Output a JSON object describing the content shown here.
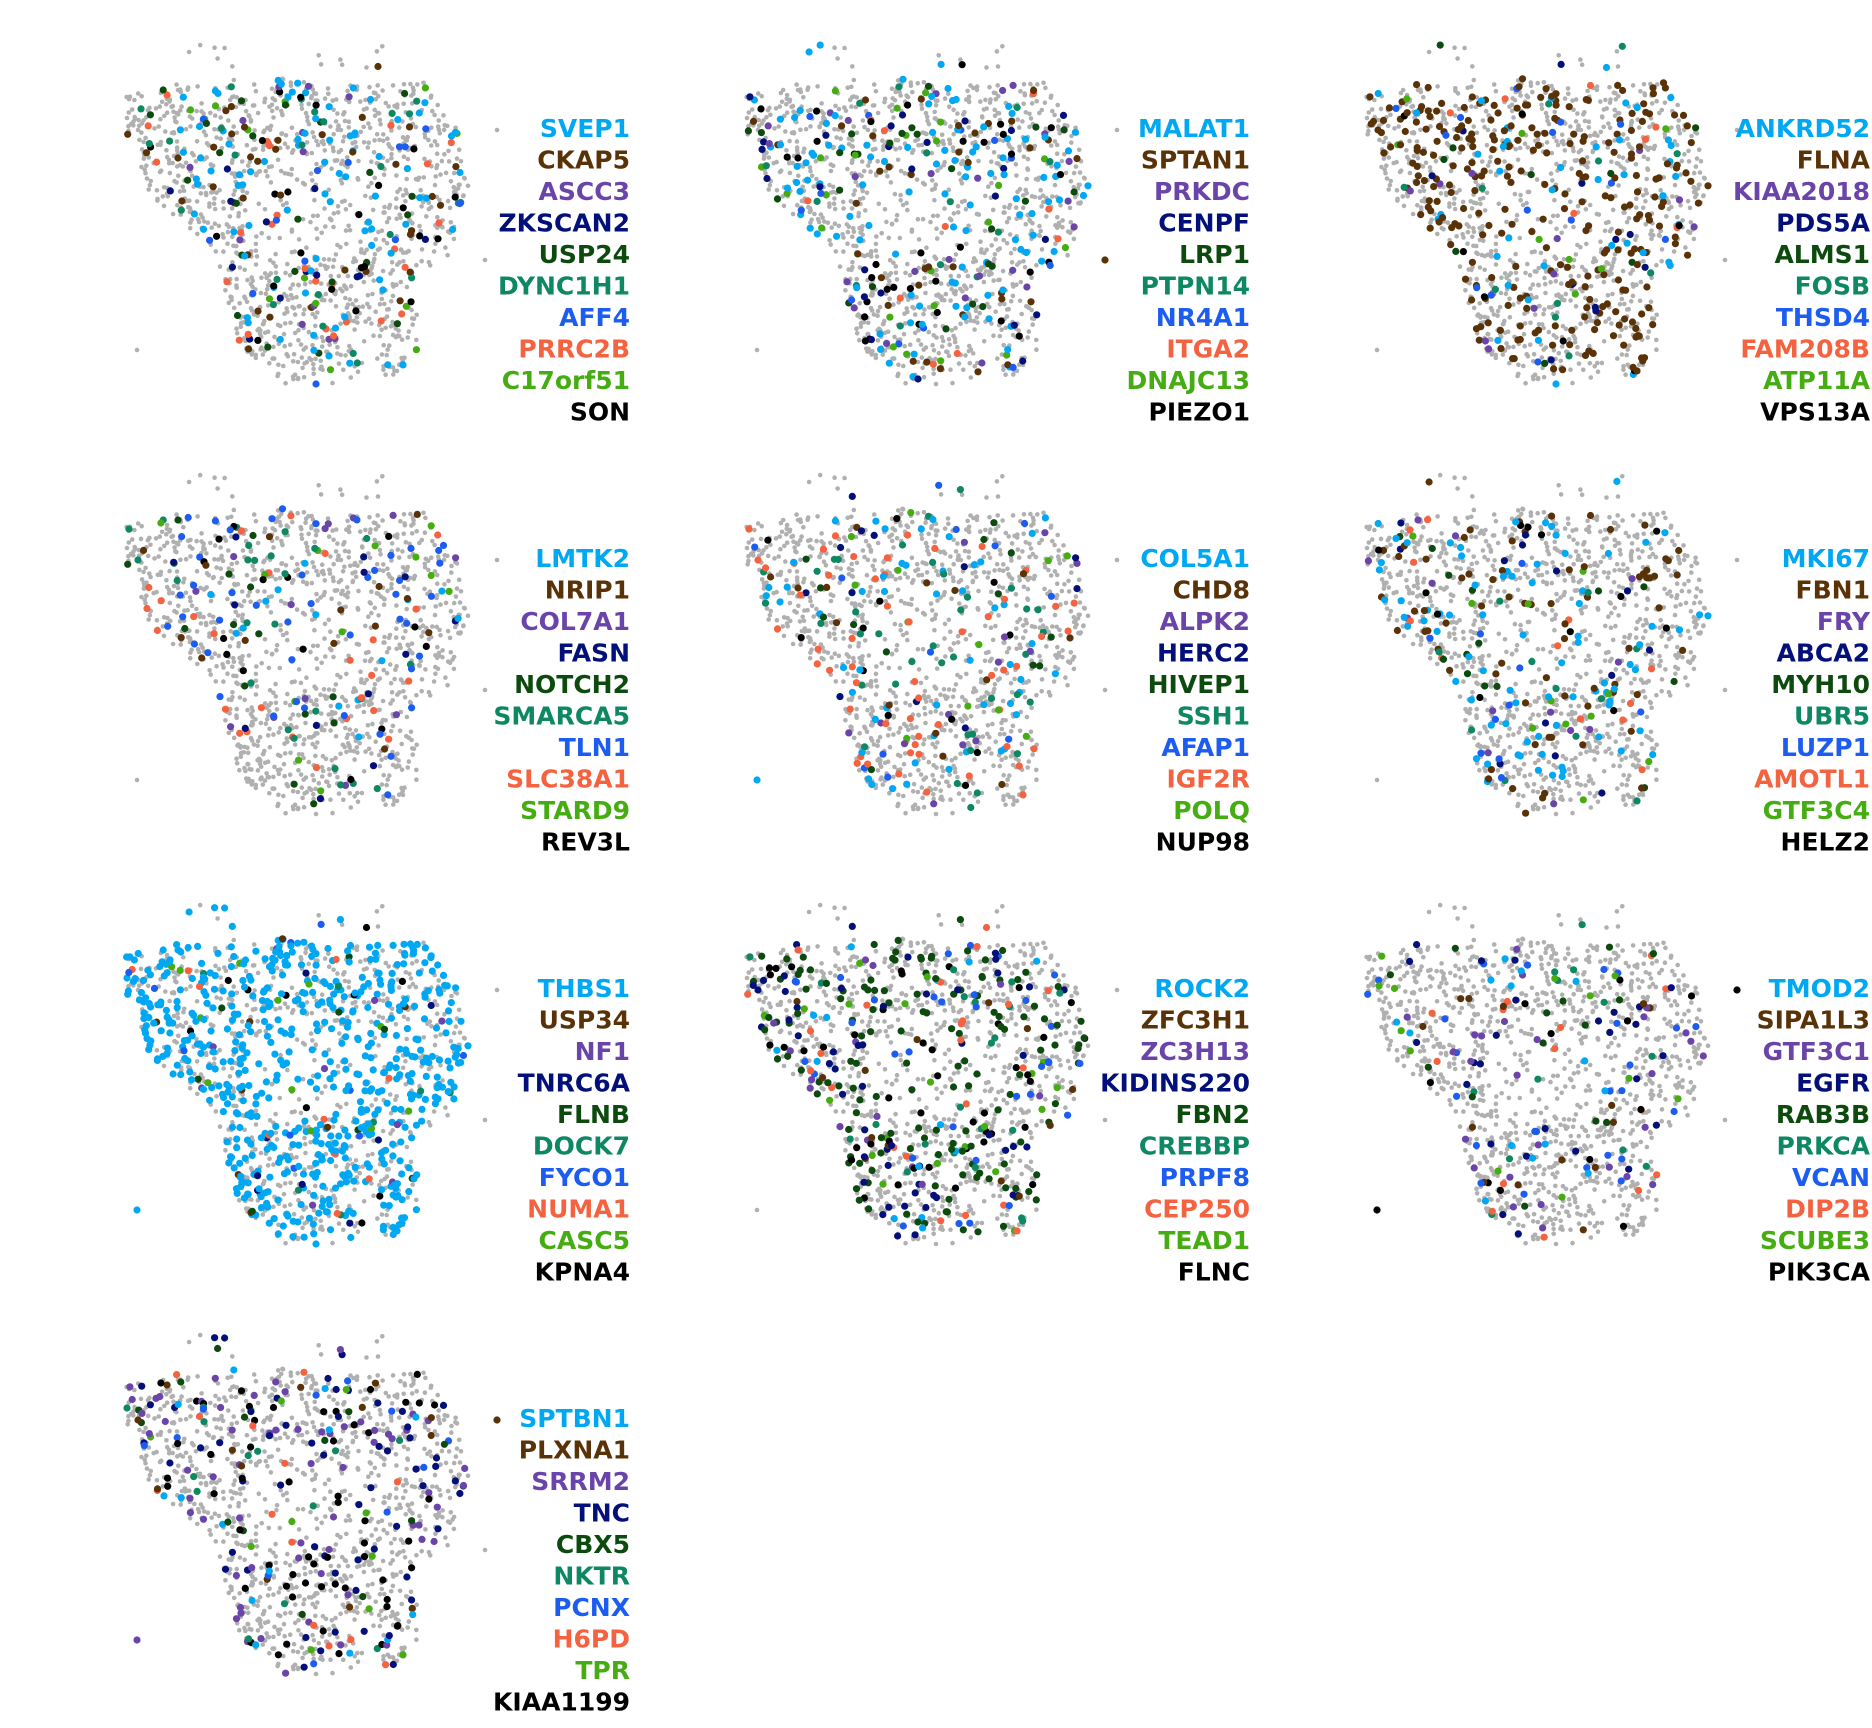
{
  "chart_data": {
    "type": "scatter",
    "background_color": "#b0b0b0",
    "palette": [
      "#00a8f3",
      "#5a3207",
      "#6a44a8",
      "#04107a",
      "#0d4a0e",
      "#0d8862",
      "#1c5cf1",
      "#f4623f",
      "#45ad12",
      "#000000"
    ],
    "panels": [
      {
        "genes": [
          "SVEP1",
          "CKAP5",
          "ASCC3",
          "ZKSCAN2",
          "USP24",
          "DYNC1H1",
          "AFF4",
          "PRRC2B",
          "C17orf51",
          "SON"
        ],
        "highlight_fraction": [
          0.06,
          0.03,
          0.01,
          0.01,
          0.02,
          0.02,
          0.01,
          0.02,
          0.01,
          0.02
        ]
      },
      {
        "genes": [
          "MALAT1",
          "SPTAN1",
          "PRKDC",
          "CENPF",
          "LRP1",
          "PTPN14",
          "NR4A1",
          "ITGA2",
          "DNAJC13",
          "PIEZO1"
        ],
        "highlight_fraction": [
          0.08,
          0.03,
          0.02,
          0.02,
          0.02,
          0.01,
          0.01,
          0.01,
          0.02,
          0.03
        ]
      },
      {
        "genes": [
          "ANKRD52",
          "FLNA",
          "KIAA2018",
          "PDS5A",
          "ALMS1",
          "FOSB",
          "THSD4",
          "FAM208B",
          "ATP11A",
          "VPS13A"
        ],
        "highlight_fraction": [
          0.03,
          0.22,
          0.01,
          0.01,
          0.01,
          0.01,
          0.01,
          0.01,
          0.01,
          0.01
        ]
      },
      {
        "genes": [
          "LMTK2",
          "NRIP1",
          "COL7A1",
          "FASN",
          "NOTCH2",
          "SMARCA5",
          "TLN1",
          "SLC38A1",
          "STARD9",
          "REV3L"
        ],
        "highlight_fraction": [
          0.01,
          0.01,
          0.01,
          0.01,
          0.01,
          0.02,
          0.04,
          0.02,
          0.01,
          0.01
        ]
      },
      {
        "genes": [
          "COL5A1",
          "CHD8",
          "ALPK2",
          "HERC2",
          "HIVEP1",
          "SSH1",
          "AFAP1",
          "IGF2R",
          "POLQ",
          "NUP98"
        ],
        "highlight_fraction": [
          0.04,
          0.01,
          0.01,
          0.01,
          0.01,
          0.03,
          0.01,
          0.05,
          0.01,
          0.01
        ]
      },
      {
        "genes": [
          "MKI67",
          "FBN1",
          "FRY",
          "ABCA2",
          "MYH10",
          "UBR5",
          "LUZP1",
          "AMOTL1",
          "GTF3C4",
          "HELZ2"
        ],
        "highlight_fraction": [
          0.06,
          0.06,
          0.01,
          0.01,
          0.01,
          0.01,
          0.01,
          0.01,
          0.01,
          0.01
        ]
      },
      {
        "genes": [
          "THBS1",
          "USP34",
          "NF1",
          "TNRC6A",
          "FLNB",
          "DOCK7",
          "FYCO1",
          "NUMA1",
          "CASC5",
          "KPNA4"
        ],
        "highlight_fraction": [
          0.6,
          0.01,
          0.01,
          0.01,
          0.01,
          0.01,
          0.01,
          0.02,
          0.01,
          0.02
        ]
      },
      {
        "genes": [
          "ROCK2",
          "ZFC3H1",
          "ZC3H13",
          "KIDINS220",
          "FBN2",
          "CREBBP",
          "PRPF8",
          "CEP250",
          "TEAD1",
          "FLNC"
        ],
        "highlight_fraction": [
          0.01,
          0.01,
          0.01,
          0.04,
          0.12,
          0.02,
          0.03,
          0.02,
          0.02,
          0.04
        ]
      },
      {
        "genes": [
          "TMOD2",
          "SIPA1L3",
          "GTF3C1",
          "EGFR",
          "RAB3B",
          "PRKCA",
          "VCAN",
          "DIP2B",
          "SCUBE3",
          "PIK3CA"
        ],
        "highlight_fraction": [
          0.01,
          0.01,
          0.02,
          0.02,
          0.01,
          0.01,
          0.02,
          0.01,
          0.01,
          0.01
        ]
      },
      {
        "genes": [
          "SPTBN1",
          "PLXNA1",
          "SRRM2",
          "TNC",
          "CBX5",
          "NKTR",
          "PCNX",
          "H6PD",
          "TPR",
          "KIAA1199"
        ],
        "highlight_fraction": [
          0.01,
          0.01,
          0.05,
          0.05,
          0.01,
          0.01,
          0.01,
          0.01,
          0.01,
          0.05
        ]
      }
    ],
    "grid": false,
    "axes": false
  }
}
